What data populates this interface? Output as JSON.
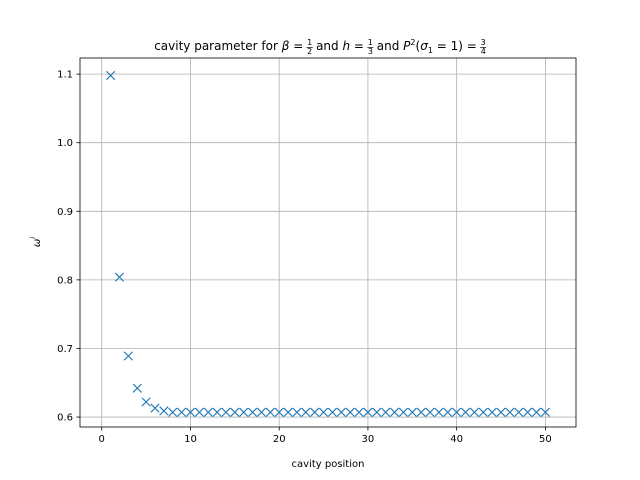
{
  "chart_data": {
    "type": "scatter",
    "title_parts": {
      "prefix": "cavity parameter for ",
      "beta_sym": "β",
      "h_sym": "h",
      "and": " and ",
      "p_sym": "P",
      "p_sup": "2",
      "sigma_sym": "σ",
      "sigma_sub": "1",
      "sigma_eq": " = 1)",
      "open_paren": "(",
      "eq": " = ",
      "beta_num": "1",
      "beta_den": "2",
      "h_num": "1",
      "h_den": "3",
      "p_num": "3",
      "p_den": "4"
    },
    "xlabel": "cavity position",
    "ylabel_symbol": "ω",
    "ylabel_sup": "i",
    "xlim": [
      -2.45,
      53.45
    ],
    "ylim": [
      0.5855,
      1.1235
    ],
    "xticks": [
      0,
      10,
      20,
      30,
      40,
      50
    ],
    "yticks": [
      0.6,
      0.7,
      0.8,
      0.9,
      1.0,
      1.1
    ],
    "ytick_labels": [
      "0.6",
      "0.7",
      "0.8",
      "0.9",
      "1.0",
      "1.1"
    ],
    "grid": true,
    "marker": "x",
    "color": "#1f77b4",
    "x": [
      1,
      2,
      3,
      4,
      5,
      6,
      7,
      8,
      9,
      10,
      11,
      12,
      13,
      14,
      15,
      16,
      17,
      18,
      19,
      20,
      21,
      22,
      23,
      24,
      25,
      26,
      27,
      28,
      29,
      30,
      31,
      32,
      33,
      34,
      35,
      36,
      37,
      38,
      39,
      40,
      41,
      42,
      43,
      44,
      45,
      46,
      47,
      48,
      49,
      50
    ],
    "y": [
      1.098,
      0.804,
      0.689,
      0.642,
      0.622,
      0.613,
      0.609,
      0.607,
      0.607,
      0.607,
      0.607,
      0.607,
      0.607,
      0.607,
      0.607,
      0.607,
      0.607,
      0.607,
      0.607,
      0.607,
      0.607,
      0.607,
      0.607,
      0.607,
      0.607,
      0.607,
      0.607,
      0.607,
      0.607,
      0.607,
      0.607,
      0.607,
      0.607,
      0.607,
      0.607,
      0.607,
      0.607,
      0.607,
      0.607,
      0.607,
      0.607,
      0.607,
      0.607,
      0.607,
      0.607,
      0.607,
      0.607,
      0.607,
      0.607,
      0.607
    ]
  }
}
